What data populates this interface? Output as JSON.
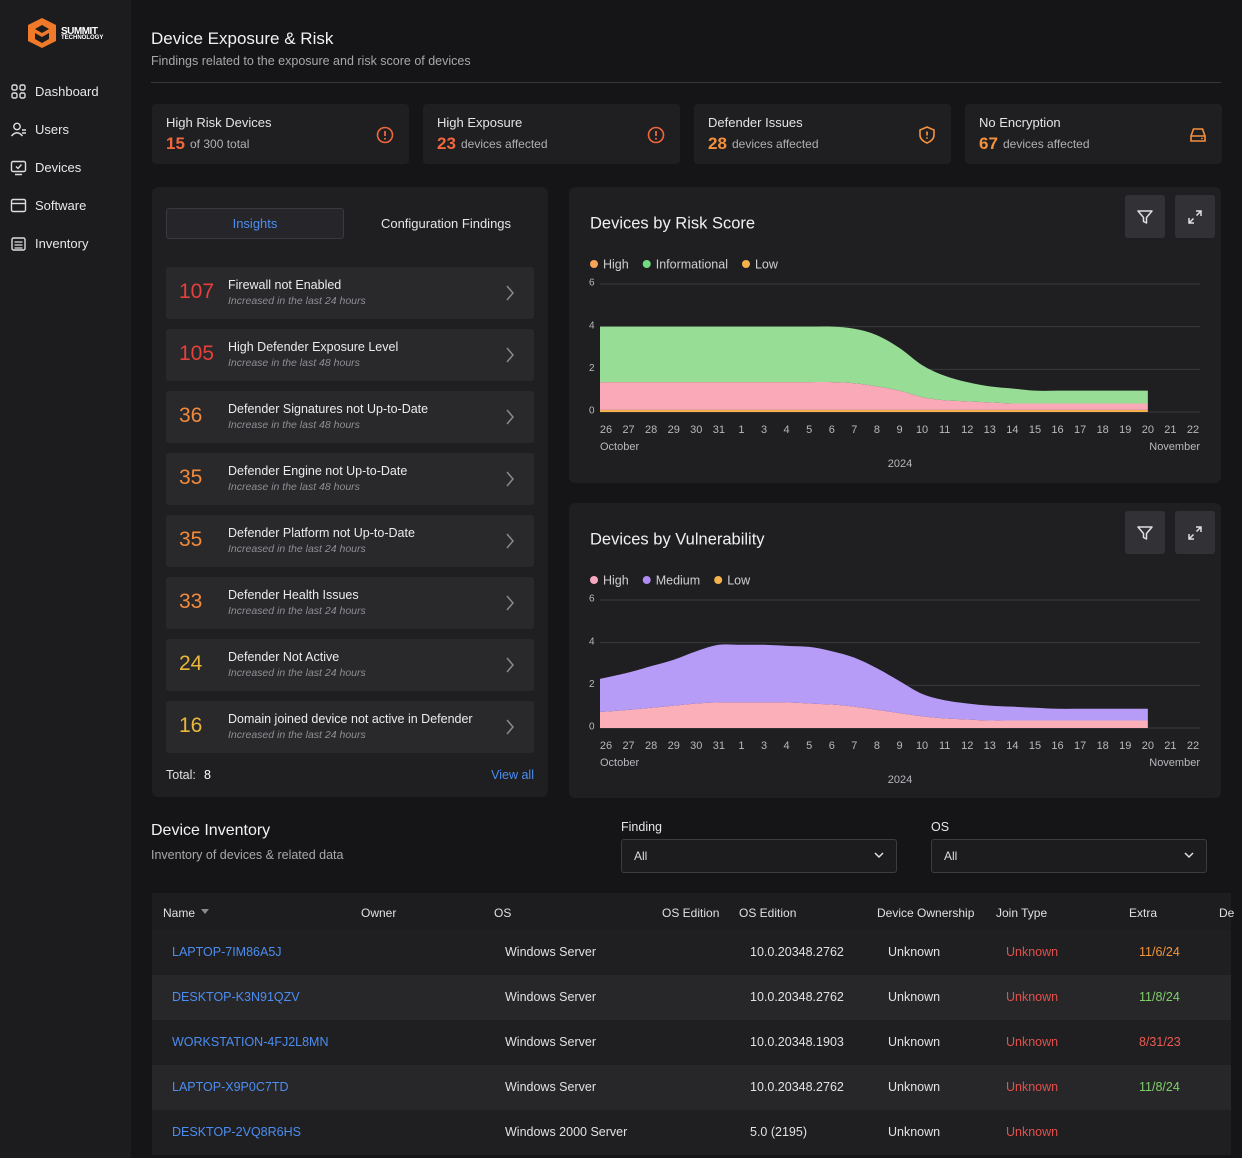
{
  "sidebar": {
    "logo": {
      "name": "SUMMIT",
      "tagline": "TECHNOLOGY"
    },
    "nav": [
      "Dashboard",
      "Users",
      "Devices",
      "Software",
      "Inventory"
    ]
  },
  "header": {
    "title": "Device Exposure & Risk",
    "subtitle": "Findings related to the exposure and risk score of devices"
  },
  "cards": [
    {
      "label": "High Risk Devices",
      "value": 15,
      "text": "of 300 total",
      "color": "#f0673c"
    },
    {
      "label": "High Exposure",
      "value": 23,
      "text": "devices affected",
      "color": "#f0673c"
    },
    {
      "label": "Defender Issues",
      "value": 28,
      "text": "devices affected",
      "color": "#f5913c"
    },
    {
      "label": "No Encryption",
      "value": 67,
      "text": "devices affected",
      "color": "#f5913c"
    }
  ],
  "insights": {
    "tabs": [
      "Insights",
      "Configuration Findings"
    ],
    "items": [
      {
        "count": 107,
        "title": "Firewall not Enabled",
        "note": "Increased in the last 24 hours",
        "color": "#e5403a"
      },
      {
        "count": 105,
        "title": "High Defender Exposure Level",
        "note": "Increase in the last 48 hours",
        "color": "#e5403a"
      },
      {
        "count": 36,
        "title": "Defender Signatures not Up-to-Date",
        "note": "Increase in the last 48 hours",
        "color": "#f28a3c"
      },
      {
        "count": 35,
        "title": "Defender Engine not Up-to-Date",
        "note": "Increase in the last 48 hours",
        "color": "#f28a3c"
      },
      {
        "count": 35,
        "title": "Defender Platform not Up-to-Date",
        "note": "Increased in the last 24 hours",
        "color": "#f28a3c"
      },
      {
        "count": 33,
        "title": "Defender Health Issues",
        "note": "Increased in the last 24 hours",
        "color": "#f28a3c"
      },
      {
        "count": 24,
        "title": "Defender Not Active",
        "note": "Increased in the last 24 hours",
        "color": "#e9b73a"
      },
      {
        "count": 16,
        "title": "Domain joined device not active in Defender",
        "note": "Increased in the last 24 hours",
        "color": "#e9b73a"
      }
    ],
    "total_label": "Total:",
    "total": 8,
    "view_all": "View all"
  },
  "chart_data": [
    {
      "type": "area",
      "title": "Devices by Risk Score",
      "categories": [
        "26",
        "27",
        "28",
        "29",
        "30",
        "31",
        "1",
        "3",
        "4",
        "5",
        "6",
        "7",
        "8",
        "9",
        "10",
        "11",
        "12",
        "13",
        "14",
        "15",
        "16",
        "17",
        "18",
        "19",
        "20",
        "21",
        "22"
      ],
      "months": [
        "October",
        "November"
      ],
      "xlabel": "2024",
      "ylim": [
        0,
        6
      ],
      "yticks": [
        0,
        2,
        4,
        6
      ],
      "grid": true,
      "stacked": true,
      "stack_order": [
        2,
        0,
        1
      ],
      "series": [
        {
          "name": "High",
          "color": "#f9a9b8",
          "legend_color": "#f5a65b",
          "values": [
            1.3,
            1.3,
            1.3,
            1.3,
            1.3,
            1.3,
            1.3,
            1.3,
            1.3,
            1.3,
            1.3,
            1.25,
            1.1,
            0.9,
            0.6,
            0.45,
            0.4,
            0.35,
            0.3,
            0.3,
            0.3,
            0.3,
            0.3,
            0.3,
            0.3,
            null,
            null
          ]
        },
        {
          "name": "Informational",
          "color": "#97dd95",
          "legend_color": "#6fdc82",
          "values": [
            2.6,
            2.6,
            2.6,
            2.6,
            2.6,
            2.6,
            2.6,
            2.6,
            2.6,
            2.6,
            2.6,
            2.55,
            2.4,
            2.0,
            1.5,
            1.15,
            0.9,
            0.75,
            0.7,
            0.6,
            0.6,
            0.6,
            0.6,
            0.6,
            0.6,
            null,
            null
          ]
        },
        {
          "name": "Low",
          "color": "#f5b24a",
          "legend_color": "#f5b24a",
          "values": [
            0.1,
            0.1,
            0.1,
            0.1,
            0.1,
            0.1,
            0.1,
            0.1,
            0.1,
            0.1,
            0.1,
            0.1,
            0.1,
            0.1,
            0.1,
            0.1,
            0.1,
            0.1,
            0.1,
            0.1,
            0.1,
            0.1,
            0.1,
            0.1,
            0.1,
            null,
            null
          ]
        }
      ]
    },
    {
      "type": "area",
      "title": "Devices by Vulnerability",
      "categories": [
        "26",
        "27",
        "28",
        "29",
        "30",
        "31",
        "1",
        "3",
        "4",
        "5",
        "6",
        "7",
        "8",
        "9",
        "10",
        "11",
        "12",
        "13",
        "14",
        "15",
        "16",
        "17",
        "18",
        "19",
        "20",
        "21",
        "22"
      ],
      "months": [
        "October",
        "November"
      ],
      "xlabel": "2024",
      "ylim": [
        0,
        6
      ],
      "yticks": [
        0,
        2,
        4,
        6
      ],
      "grid": true,
      "stacked": true,
      "stack_order": [
        2,
        0,
        1
      ],
      "series": [
        {
          "name": "High",
          "color": "#fbafb9",
          "legend_color": "#f7a8c0",
          "values": [
            0.75,
            0.85,
            0.95,
            1.05,
            1.15,
            1.2,
            1.2,
            1.2,
            1.2,
            1.15,
            1.1,
            1.0,
            0.85,
            0.7,
            0.55,
            0.45,
            0.4,
            0.35,
            0.35,
            0.35,
            0.35,
            0.35,
            0.35,
            0.35,
            0.35,
            null,
            null
          ]
        },
        {
          "name": "Medium",
          "color": "#b79cf7",
          "legend_color": "#b28cf5",
          "values": [
            1.55,
            1.75,
            1.95,
            2.15,
            2.45,
            2.7,
            2.7,
            2.7,
            2.65,
            2.65,
            2.5,
            2.3,
            1.95,
            1.5,
            1.05,
            0.85,
            0.75,
            0.7,
            0.65,
            0.6,
            0.55,
            0.55,
            0.55,
            0.55,
            0.55,
            null,
            null
          ]
        },
        {
          "name": "Low",
          "color": "#f5b24a",
          "legend_color": "#f5b24a",
          "values": [
            0,
            0,
            0,
            0,
            0,
            0,
            0,
            0,
            0,
            0,
            0,
            0,
            0,
            0,
            0,
            0,
            0,
            0,
            0,
            0,
            0,
            0,
            0,
            0,
            0,
            null,
            null
          ]
        }
      ]
    }
  ],
  "inventory": {
    "title": "Device Inventory",
    "subtitle": "Inventory of devices & related data",
    "filters": [
      {
        "label": "Finding",
        "value": "All"
      },
      {
        "label": "OS",
        "value": "All"
      }
    ],
    "columns": [
      "Name",
      "Owner",
      "OS",
      "OS Edition",
      "OS Edition",
      "Device Ownership",
      "Join Type",
      "Extra",
      "De"
    ],
    "rows": [
      {
        "name": "LAPTOP-7IM86A5J",
        "os": "Windows Server",
        "version": "10.0.20348.2762",
        "ownership": "Unknown",
        "join": "Unknown",
        "extra": "11/6/24",
        "extra_color": "#f0953c"
      },
      {
        "name": "DESKTOP-K3N91QZV",
        "os": "Windows Server",
        "version": "10.0.20348.2762",
        "ownership": "Unknown",
        "join": "Unknown",
        "extra": "11/8/24",
        "extra_color": "#7fd06a"
      },
      {
        "name": "WORKSTATION-4FJ2L8MN",
        "os": "Windows Server",
        "version": "10.0.20348.1903",
        "ownership": "Unknown",
        "join": "Unknown",
        "extra": "8/31/23",
        "extra_color": "#ec5a52"
      },
      {
        "name": "LAPTOP-X9P0C7TD",
        "os": "Windows Server",
        "version": "10.0.20348.2762",
        "ownership": "Unknown",
        "join": "Unknown",
        "extra": "11/8/24",
        "extra_color": "#7fd06a"
      },
      {
        "name": "DESKTOP-2VQ8R6HS",
        "os": "Windows 2000 Server",
        "version": "5.0 (2195)",
        "ownership": "Unknown",
        "join": "Unknown"
      }
    ]
  }
}
